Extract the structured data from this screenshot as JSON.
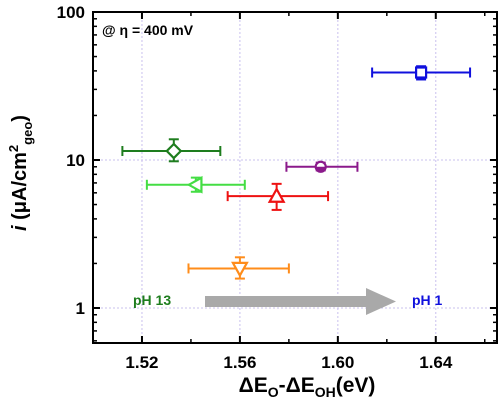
{
  "chart_data": {
    "type": "scatter",
    "title": "",
    "xlabel": {
      "base": "ΔE",
      "sub1": "O",
      "mid": "-ΔE",
      "sub2": "OH",
      "tail": "(eV)"
    },
    "ylabel": {
      "italic": "i",
      "mid": " (μA/cm",
      "sup": "2",
      "sub": "geo",
      "tail": ")"
    },
    "xlim": [
      1.5,
      1.665
    ],
    "ylim": [
      0.58,
      100
    ],
    "yscale": "log",
    "grid": true,
    "x_ticks": [
      1.52,
      1.56,
      1.6,
      1.64
    ],
    "x_tick_labels": [
      "1.52",
      "1.56",
      "1.60",
      "1.64"
    ],
    "y_ticks": [
      1,
      10,
      100
    ],
    "y_tick_labels": [
      "1",
      "10",
      "100"
    ],
    "points": [
      {
        "x": 1.533,
        "y": 11.5,
        "xerr_low": 1.512,
        "xerr_high": 1.552,
        "yerr_low": 9.8,
        "yerr_high": 13.8,
        "marker": "diamond",
        "color": "#1e7d1e"
      },
      {
        "x": 1.542,
        "y": 6.8,
        "xerr_low": 1.522,
        "xerr_high": 1.562,
        "yerr_low": 6.1,
        "yerr_high": 7.6,
        "marker": "triangle-left",
        "color": "#44dd44"
      },
      {
        "x": 1.56,
        "y": 1.85,
        "xerr_low": 1.539,
        "xerr_high": 1.58,
        "yerr_low": 1.58,
        "yerr_high": 2.2,
        "marker": "triangle-down",
        "color": "#ff8c1a"
      },
      {
        "x": 1.575,
        "y": 5.7,
        "xerr_low": 1.555,
        "xerr_high": 1.596,
        "yerr_low": 4.6,
        "yerr_high": 6.9,
        "marker": "triangle-up",
        "color": "#ee1111"
      },
      {
        "x": 1.593,
        "y": 9.0,
        "xerr_low": 1.579,
        "xerr_high": 1.608,
        "yerr_low": 8.5,
        "yerr_high": 9.6,
        "marker": "circle-half",
        "color": "#8b1a8b"
      },
      {
        "x": 1.634,
        "y": 39.0,
        "xerr_low": 1.614,
        "xerr_high": 1.654,
        "yerr_low": 35.0,
        "yerr_high": 43.0,
        "marker": "square",
        "color": "#1010dd"
      }
    ],
    "annotations": {
      "condition": "@ η = 400 mV",
      "left_label": "pH 13",
      "left_color": "#1e7d1e",
      "right_label": "pH 1",
      "right_color": "#1010dd",
      "arrow_color": "#a9a9a9"
    }
  }
}
